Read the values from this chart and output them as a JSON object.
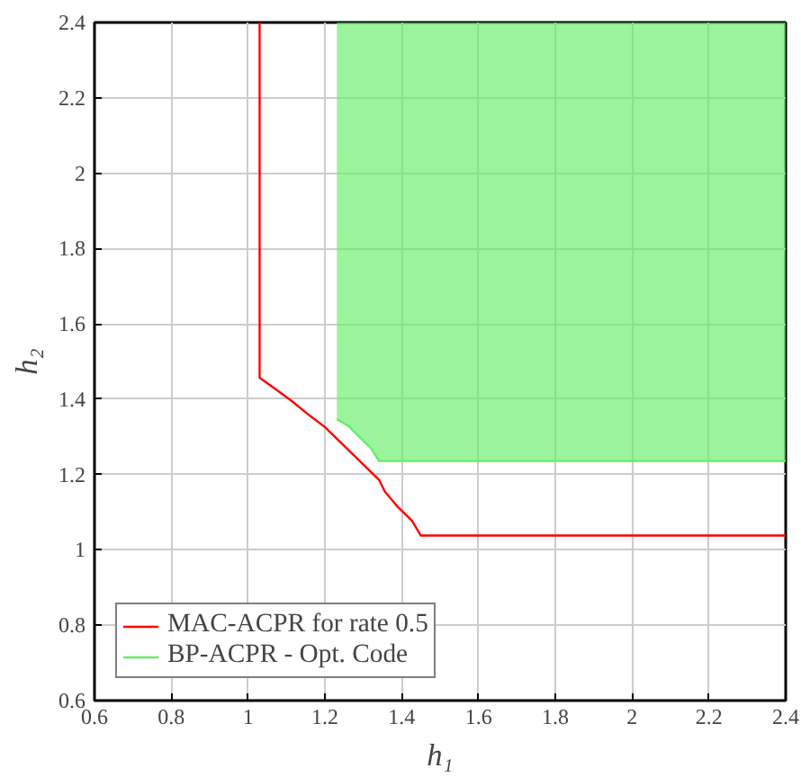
{
  "chart_data": {
    "type": "line",
    "xlabel": "h₁",
    "ylabel": "h₂",
    "xlim": [
      0.6,
      2.4
    ],
    "ylim": [
      0.6,
      2.4
    ],
    "xticks": [
      0.6,
      0.8,
      1,
      1.2,
      1.4,
      1.6,
      1.8,
      2,
      2.2,
      2.4
    ],
    "yticks": [
      0.6,
      0.8,
      1,
      1.2,
      1.4,
      1.6,
      1.8,
      2,
      2.2,
      2.4
    ],
    "grid": true,
    "legend": "bottom left",
    "series": [
      {
        "name": "MAC-ACPR for rate 0.5",
        "color": "#ff0000",
        "x": [
          1.03,
          1.03,
          1.075,
          1.114,
          1.161,
          1.2,
          1.341,
          1.356,
          1.388,
          1.427,
          1.45,
          2.4
        ],
        "values": [
          2.4,
          1.457,
          1.424,
          1.395,
          1.356,
          1.326,
          1.186,
          1.155,
          1.116,
          1.077,
          1.038,
          1.038
        ]
      },
      {
        "name": "BP-ACPR - Opt. Code",
        "type": "line",
        "color": "#66ee66",
        "x": [
          1.231,
          1.26,
          1.29,
          1.32,
          1.341,
          2.4
        ],
        "values": [
          1.347,
          1.33,
          1.3,
          1.27,
          1.236,
          1.236
        ],
        "lower": [
          1.347,
          1.33,
          1.3,
          1.27,
          1.236,
          1.236
        ],
        "upper": [
          2.4,
          2.4,
          2.4,
          2.4,
          2.4,
          2.4
        ]
      }
    ]
  }
}
